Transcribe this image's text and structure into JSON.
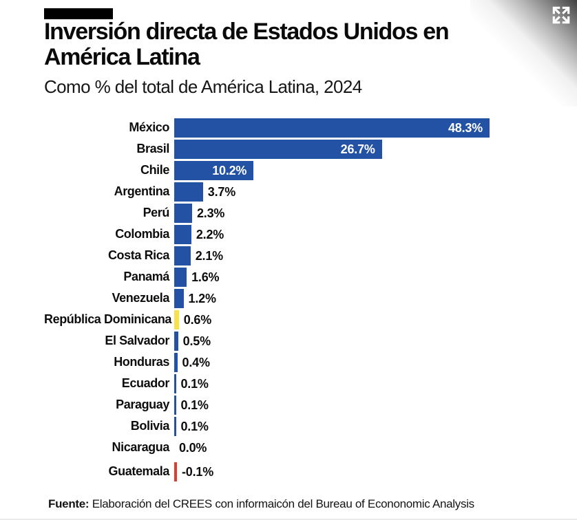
{
  "header": {
    "title": "Inversión directa de Estados Unidos en América Latina",
    "subtitle": "Como % del total de América Latina, 2024"
  },
  "chart_data": {
    "type": "bar",
    "orientation": "horizontal",
    "title": "Inversión directa de Estados Unidos en América Latina",
    "subtitle": "Como % del total de América Latina, 2024",
    "unit": "%",
    "xlim": [
      0,
      48.3
    ],
    "grid": false,
    "legend": false,
    "categories": [
      "México",
      "Brasil",
      "Chile",
      "Argentina",
      "Perú",
      "Colombia",
      "Costa Rica",
      "Panamá",
      "Venezuela",
      "República Dominicana",
      "El Salvador",
      "Honduras",
      "Ecuador",
      "Paraguay",
      "Bolivia",
      "Nicaragua",
      "Guatemala"
    ],
    "values": [
      48.3,
      26.7,
      10.2,
      3.7,
      2.3,
      2.2,
      2.1,
      1.6,
      1.2,
      0.6,
      0.5,
      0.4,
      0.1,
      0.1,
      0.1,
      0.0,
      -0.1
    ],
    "value_labels": [
      "48.3%",
      "26.7%",
      "10.2%",
      "3.7%",
      "2.3%",
      "2.2%",
      "2.1%",
      "1.6%",
      "1.2%",
      "0.6%",
      "0.5%",
      "0.4%",
      "0.1%",
      "0.1%",
      "0.1%",
      "0.0%",
      "-0.1%"
    ],
    "bar_colors": [
      "#2351a3",
      "#2351a3",
      "#2351a3",
      "#2351a3",
      "#2351a3",
      "#2351a3",
      "#2351a3",
      "#2351a3",
      "#2351a3",
      "#f7e14d",
      "#2351a3",
      "#2351a3",
      "#2351a3",
      "#2351a3",
      "#2351a3",
      "#2351a3",
      "#e23a2d"
    ]
  },
  "footer": {
    "source_prefix": "Fuente:",
    "source_text": " Elaboración del CREES con informaicón del Bureau of Econonomic Analysis"
  },
  "colors": {
    "bar_blue": "#2351a3",
    "bar_yellow": "#f7e14d",
    "bar_red": "#e23a2d",
    "logo_black": "#000000",
    "text": "#111111"
  },
  "icons": {
    "expand": "expand-arrows-icon"
  }
}
